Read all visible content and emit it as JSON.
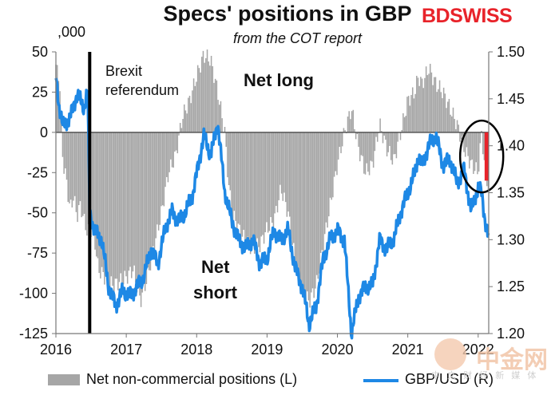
{
  "chart_data": {
    "type": "bar+line",
    "title": "Specs' positions in GBP",
    "subtitle": "from the COT report",
    "left_axis_units": ",000",
    "yleft": {
      "ylim": [
        -125,
        50
      ],
      "ticks": [
        50,
        25,
        0,
        -25,
        -50,
        -75,
        -100,
        -125
      ]
    },
    "yright": {
      "ylim": [
        1.2,
        1.5
      ],
      "ticks": [
        "1.50",
        "1.45",
        "1.40",
        "1.35",
        "1.30",
        "1.25",
        "1.20"
      ]
    },
    "x": {
      "xlim": [
        2016.0,
        2022.15
      ],
      "ticks": [
        "2016",
        "2017",
        "2018",
        "2019",
        "2020",
        "2021",
        "2022"
      ]
    },
    "annotations": {
      "brexit": [
        "Brexit",
        "referendum"
      ],
      "net_long": "Net long",
      "net_short": [
        "Net",
        "short"
      ]
    },
    "brexit_date": 2016.48,
    "series": [
      {
        "name": "Net non-commercial positions (L)",
        "type": "bar",
        "color": "#a6a6a6",
        "points": [
          [
            2016.0,
            40
          ],
          [
            2016.05,
            35
          ],
          [
            2016.1,
            -18
          ],
          [
            2016.15,
            -30
          ],
          [
            2016.2,
            -48
          ],
          [
            2016.25,
            -40
          ],
          [
            2016.3,
            -52
          ],
          [
            2016.35,
            -45
          ],
          [
            2016.4,
            -55
          ],
          [
            2016.45,
            -62
          ],
          [
            2016.5,
            -60
          ],
          [
            2016.55,
            -66
          ],
          [
            2016.6,
            -85
          ],
          [
            2016.7,
            -90
          ],
          [
            2016.8,
            -95
          ],
          [
            2016.9,
            -93
          ],
          [
            2017.0,
            -90
          ],
          [
            2017.1,
            -85
          ],
          [
            2017.2,
            -105
          ],
          [
            2017.3,
            -90
          ],
          [
            2017.4,
            -70
          ],
          [
            2017.5,
            -50
          ],
          [
            2017.6,
            -25
          ],
          [
            2017.7,
            -15
          ],
          [
            2017.8,
            10
          ],
          [
            2017.9,
            20
          ],
          [
            2018.0,
            35
          ],
          [
            2018.1,
            48
          ],
          [
            2018.2,
            45
          ],
          [
            2018.3,
            25
          ],
          [
            2018.4,
            0
          ],
          [
            2018.45,
            -30
          ],
          [
            2018.5,
            -50
          ],
          [
            2018.6,
            -60
          ],
          [
            2018.7,
            -68
          ],
          [
            2018.8,
            -72
          ],
          [
            2018.9,
            -70
          ],
          [
            2019.0,
            -60
          ],
          [
            2019.1,
            -55
          ],
          [
            2019.2,
            -35
          ],
          [
            2019.3,
            -50
          ],
          [
            2019.4,
            -80
          ],
          [
            2019.5,
            -100
          ],
          [
            2019.6,
            -105
          ],
          [
            2019.7,
            -95
          ],
          [
            2019.8,
            -70
          ],
          [
            2019.9,
            -45
          ],
          [
            2020.0,
            -20
          ],
          [
            2020.1,
            0
          ],
          [
            2020.2,
            15
          ],
          [
            2020.3,
            -10
          ],
          [
            2020.4,
            -25
          ],
          [
            2020.5,
            -20
          ],
          [
            2020.6,
            5
          ],
          [
            2020.7,
            -10
          ],
          [
            2020.8,
            -18
          ],
          [
            2020.9,
            0
          ],
          [
            2021.0,
            20
          ],
          [
            2021.1,
            25
          ],
          [
            2021.15,
            35
          ],
          [
            2021.2,
            30
          ],
          [
            2021.3,
            40
          ],
          [
            2021.4,
            30
          ],
          [
            2021.5,
            25
          ],
          [
            2021.6,
            15
          ],
          [
            2021.7,
            5
          ],
          [
            2021.8,
            -10
          ],
          [
            2021.9,
            -20
          ],
          [
            2022.0,
            -25
          ],
          [
            2022.05,
            0
          ],
          [
            2022.1,
            -25
          ],
          [
            2022.15,
            -35
          ]
        ]
      },
      {
        "name": "GBP/USD (R)",
        "type": "line",
        "color": "#1e88e5",
        "points": [
          [
            2016.0,
            1.475
          ],
          [
            2016.05,
            1.44
          ],
          [
            2016.1,
            1.42
          ],
          [
            2016.2,
            1.43
          ],
          [
            2016.3,
            1.455
          ],
          [
            2016.4,
            1.44
          ],
          [
            2016.45,
            1.46
          ],
          [
            2016.48,
            1.33
          ],
          [
            2016.55,
            1.31
          ],
          [
            2016.65,
            1.3
          ],
          [
            2016.75,
            1.25
          ],
          [
            2016.85,
            1.23
          ],
          [
            2016.95,
            1.245
          ],
          [
            2017.05,
            1.24
          ],
          [
            2017.15,
            1.25
          ],
          [
            2017.25,
            1.26
          ],
          [
            2017.35,
            1.29
          ],
          [
            2017.45,
            1.275
          ],
          [
            2017.55,
            1.31
          ],
          [
            2017.65,
            1.33
          ],
          [
            2017.75,
            1.32
          ],
          [
            2017.85,
            1.33
          ],
          [
            2017.95,
            1.35
          ],
          [
            2018.1,
            1.41
          ],
          [
            2018.2,
            1.39
          ],
          [
            2018.3,
            1.425
          ],
          [
            2018.4,
            1.35
          ],
          [
            2018.5,
            1.32
          ],
          [
            2018.6,
            1.3
          ],
          [
            2018.7,
            1.29
          ],
          [
            2018.8,
            1.3
          ],
          [
            2018.9,
            1.275
          ],
          [
            2019.0,
            1.28
          ],
          [
            2019.1,
            1.31
          ],
          [
            2019.2,
            1.3
          ],
          [
            2019.3,
            1.31
          ],
          [
            2019.4,
            1.27
          ],
          [
            2019.5,
            1.25
          ],
          [
            2019.6,
            1.21
          ],
          [
            2019.7,
            1.23
          ],
          [
            2019.8,
            1.28
          ],
          [
            2019.9,
            1.3
          ],
          [
            2020.0,
            1.31
          ],
          [
            2020.1,
            1.3
          ],
          [
            2020.2,
            1.2
          ],
          [
            2020.3,
            1.24
          ],
          [
            2020.4,
            1.25
          ],
          [
            2020.5,
            1.25
          ],
          [
            2020.6,
            1.3
          ],
          [
            2020.7,
            1.29
          ],
          [
            2020.8,
            1.3
          ],
          [
            2020.9,
            1.33
          ],
          [
            2021.0,
            1.35
          ],
          [
            2021.1,
            1.37
          ],
          [
            2021.15,
            1.39
          ],
          [
            2021.2,
            1.38
          ],
          [
            2021.3,
            1.4
          ],
          [
            2021.4,
            1.41
          ],
          [
            2021.5,
            1.38
          ],
          [
            2021.6,
            1.385
          ],
          [
            2021.7,
            1.36
          ],
          [
            2021.8,
            1.375
          ],
          [
            2021.9,
            1.33
          ],
          [
            2022.0,
            1.355
          ],
          [
            2022.05,
            1.35
          ],
          [
            2022.1,
            1.32
          ],
          [
            2022.15,
            1.3
          ]
        ]
      }
    ],
    "highlight": {
      "x": 2022.12,
      "from": -30,
      "to": 0,
      "color": "#e8232a"
    },
    "ellipse_center": {
      "x": 2022.05,
      "yleft": -15
    }
  },
  "logo": {
    "bd": "BD",
    "swiss": "SWISS"
  },
  "legend": {
    "bar_label": "Net non-commercial positions (L)",
    "line_label": "GBP/USD (R)"
  },
  "watermark": {
    "text": "中金网",
    "sub": "中 文 财 经 新 媒 体"
  }
}
